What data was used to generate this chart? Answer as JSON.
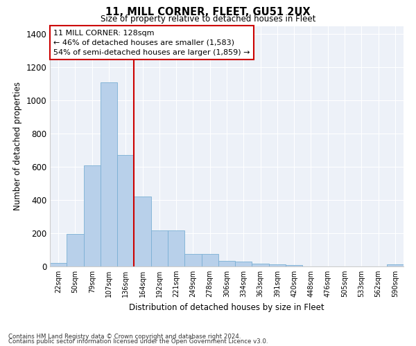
{
  "title1": "11, MILL CORNER, FLEET, GU51 2UX",
  "title2": "Size of property relative to detached houses in Fleet",
  "xlabel": "Distribution of detached houses by size in Fleet",
  "ylabel": "Number of detached properties",
  "categories": [
    "22sqm",
    "50sqm",
    "79sqm",
    "107sqm",
    "136sqm",
    "164sqm",
    "192sqm",
    "221sqm",
    "249sqm",
    "278sqm",
    "306sqm",
    "334sqm",
    "363sqm",
    "391sqm",
    "420sqm",
    "448sqm",
    "476sqm",
    "505sqm",
    "533sqm",
    "562sqm",
    "590sqm"
  ],
  "values": [
    20,
    195,
    610,
    1110,
    670,
    420,
    215,
    215,
    75,
    75,
    35,
    28,
    15,
    12,
    8,
    0,
    0,
    0,
    0,
    0,
    12
  ],
  "bar_color": "#b8d0ea",
  "bar_edge_color": "#7aafd4",
  "background_color": "#edf1f8",
  "annotation_line1": "11 MILL CORNER: 128sqm",
  "annotation_line2": "← 46% of detached houses are smaller (1,583)",
  "annotation_line3": "54% of semi-detached houses are larger (1,859) →",
  "vline_x": 4.5,
  "vline_color": "#cc0000",
  "ylim": [
    0,
    1450
  ],
  "yticks": [
    0,
    200,
    400,
    600,
    800,
    1000,
    1200,
    1400
  ],
  "footer1": "Contains HM Land Registry data © Crown copyright and database right 2024.",
  "footer2": "Contains public sector information licensed under the Open Government Licence v3.0."
}
